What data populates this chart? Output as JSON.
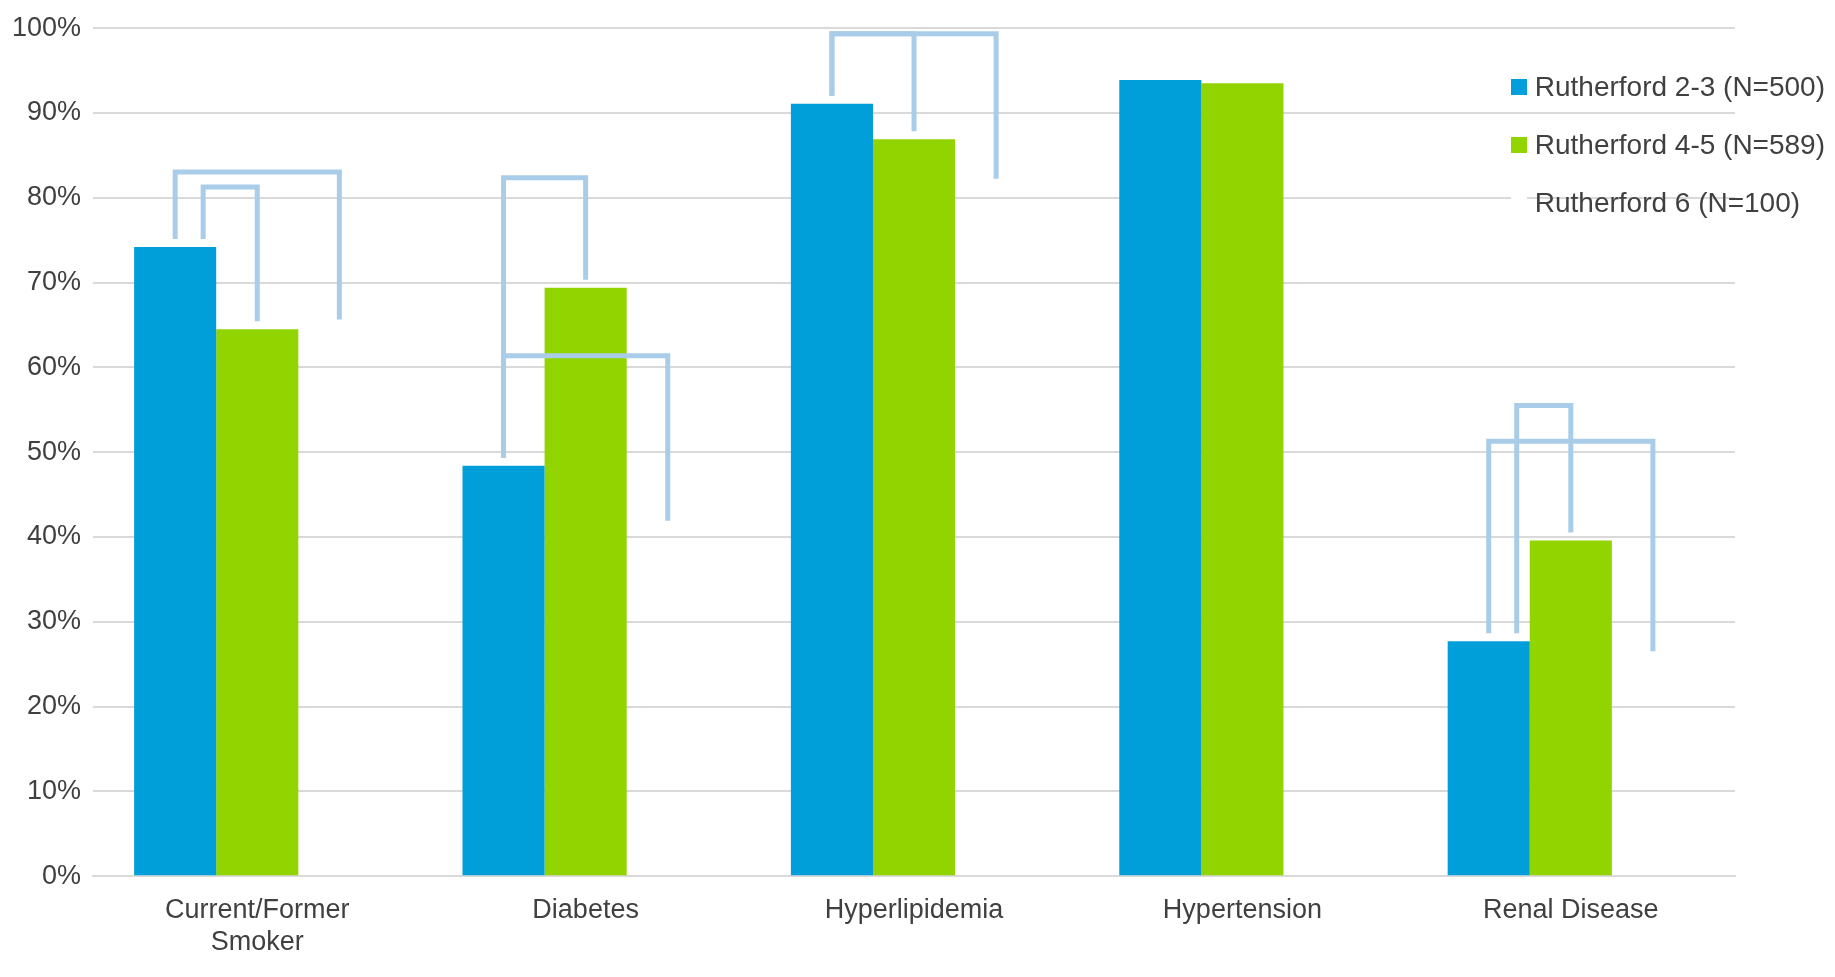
{
  "chart_data": {
    "type": "bar",
    "categories": [
      "Current/Former Smoker",
      "Diabetes",
      "Hyperlipidemia",
      "Hypertension",
      "Renal Disease"
    ],
    "series": [
      {
        "name": "Rutherford 2-3 (N=500)",
        "color": "#009fda",
        "values": [
          74.2,
          48.4,
          91.1,
          93.9,
          27.7
        ]
      },
      {
        "name": "Rutherford 4-5 (N=589)",
        "color": "#92d400",
        "values": [
          64.5,
          69.4,
          86.9,
          93.5,
          39.6
        ]
      },
      {
        "name": "Rutherford 6 (N=100)",
        "color": "#ffffff",
        "values": [
          null,
          null,
          null,
          null,
          null
        ]
      }
    ],
    "ylim": [
      0,
      100
    ],
    "yticks": [
      {
        "value": 0,
        "label": "0%"
      },
      {
        "value": 10,
        "label": "10%"
      },
      {
        "value": 20,
        "label": "20%"
      },
      {
        "value": 30,
        "label": "30%"
      },
      {
        "value": 40,
        "label": "40%"
      },
      {
        "value": 50,
        "label": "50%"
      },
      {
        "value": 60,
        "label": "60%"
      },
      {
        "value": 70,
        "label": "70%"
      },
      {
        "value": 80,
        "label": "80%"
      },
      {
        "value": 90,
        "label": "90%"
      },
      {
        "value": 100,
        "label": "100%"
      }
    ],
    "grid": "y",
    "legend": "top right"
  }
}
